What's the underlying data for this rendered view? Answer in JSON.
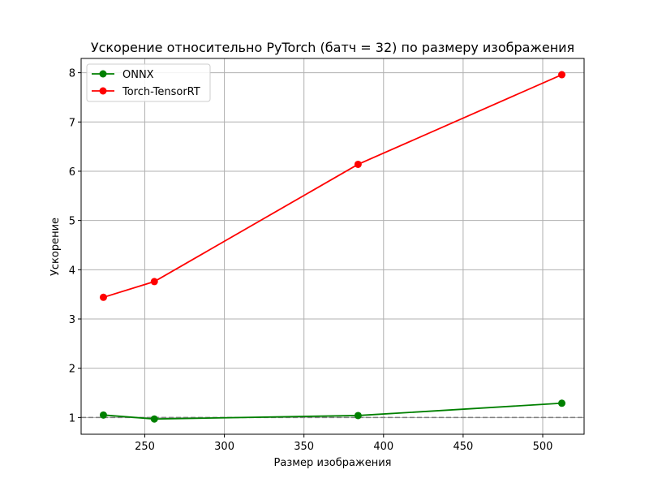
{
  "chart_data": {
    "type": "line",
    "title": "Ускорение относительно PyTorch (батч = 32) по размеру изображения",
    "xlabel": "Размер изображения",
    "ylabel": "Ускорение",
    "xlim": [
      210,
      526
    ],
    "ylim": [
      0.66,
      8.29
    ],
    "x_ticks": [
      250,
      300,
      350,
      400,
      450,
      500
    ],
    "y_ticks": [
      1,
      2,
      3,
      4,
      5,
      6,
      7,
      8
    ],
    "grid": true,
    "legend": "top-left",
    "reference_line": {
      "y": 1,
      "color": "#808080",
      "style": "dashed"
    },
    "series": [
      {
        "name": "ONNX",
        "color": "#008000",
        "x": [
          224,
          256,
          384,
          512
        ],
        "y": [
          1.05,
          0.97,
          1.04,
          1.29
        ]
      },
      {
        "name": "Torch-TensorRT",
        "color": "#ff0000",
        "x": [
          224,
          256,
          384,
          512
        ],
        "y": [
          3.44,
          3.76,
          6.14,
          7.96
        ]
      }
    ]
  }
}
